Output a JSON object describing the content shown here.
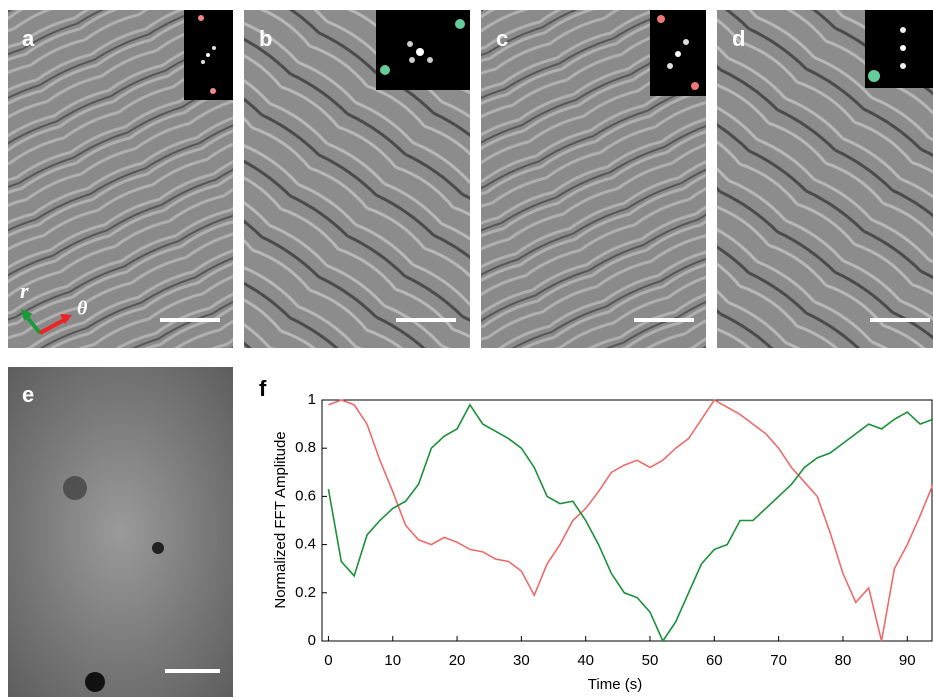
{
  "panels": {
    "a": "a",
    "b": "b",
    "c": "c",
    "d": "d",
    "e": "e",
    "f": "f"
  },
  "axes_glyphs": {
    "r": "r",
    "theta": "θ"
  },
  "chart_data": {
    "type": "line",
    "x_label": "Time (s)",
    "y_label": "Normalized FFT Amplitude",
    "x": [
      0,
      2,
      4,
      6,
      8,
      10,
      12,
      14,
      16,
      18,
      20,
      22,
      24,
      26,
      28,
      30,
      32,
      34,
      36,
      38,
      40,
      42,
      44,
      46,
      48,
      50,
      52,
      54,
      56,
      58,
      60,
      62,
      64,
      66,
      68,
      70,
      72,
      74,
      76,
      78,
      80,
      82,
      84,
      86,
      88,
      90,
      92,
      94
    ],
    "series": [
      {
        "color": "#ee6b6b",
        "values": [
          0.98,
          1.0,
          0.98,
          0.9,
          0.75,
          0.62,
          0.48,
          0.42,
          0.4,
          0.43,
          0.41,
          0.38,
          0.37,
          0.34,
          0.33,
          0.29,
          0.19,
          0.32,
          0.4,
          0.5,
          0.55,
          0.62,
          0.7,
          0.73,
          0.75,
          0.72,
          0.75,
          0.8,
          0.84,
          0.92,
          1.0,
          0.97,
          0.94,
          0.9,
          0.86,
          0.8,
          0.72,
          0.66,
          0.6,
          0.45,
          0.28,
          0.16,
          0.22,
          0.0,
          0.3,
          0.4,
          0.52,
          0.65
        ]
      },
      {
        "color": "#1a9139",
        "values": [
          0.63,
          0.33,
          0.27,
          0.44,
          0.5,
          0.55,
          0.58,
          0.65,
          0.8,
          0.85,
          0.88,
          0.98,
          0.9,
          0.87,
          0.84,
          0.8,
          0.72,
          0.6,
          0.57,
          0.58,
          0.5,
          0.4,
          0.28,
          0.2,
          0.18,
          0.12,
          0.0,
          0.08,
          0.2,
          0.32,
          0.38,
          0.4,
          0.5,
          0.5,
          0.55,
          0.6,
          0.65,
          0.72,
          0.76,
          0.78,
          0.82,
          0.86,
          0.9,
          0.88,
          0.92,
          0.95,
          0.9,
          0.92
        ]
      }
    ],
    "xlim": [
      -1,
      94
    ],
    "ylim": [
      0,
      1
    ],
    "xticks": [
      0,
      10,
      20,
      30,
      40,
      50,
      60,
      70,
      80,
      90
    ],
    "yticks": [
      0,
      0.2,
      0.4,
      0.6,
      0.8,
      1
    ]
  }
}
